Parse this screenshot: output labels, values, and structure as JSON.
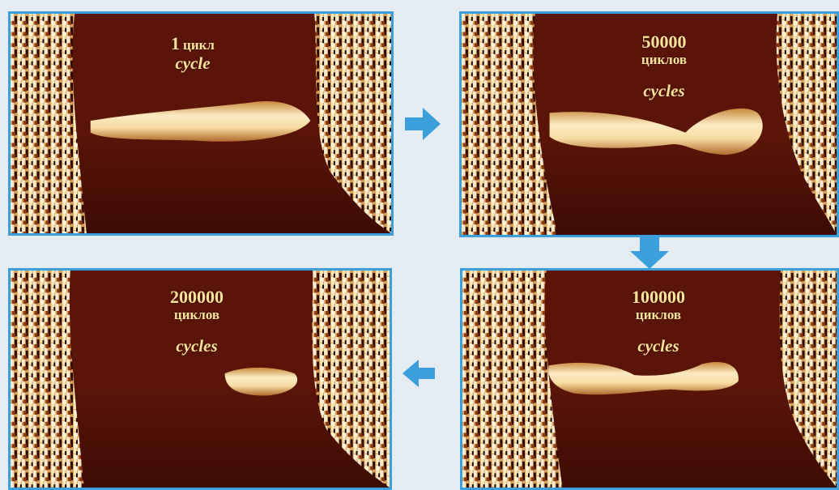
{
  "panels": [
    {
      "id": "p1",
      "number": "1",
      "unit_ru": "цикл",
      "unit_en": "cycle"
    },
    {
      "id": "p2",
      "number": "50000",
      "unit_ru": "циклов",
      "unit_en": "cycles"
    },
    {
      "id": "p3",
      "number": "100000",
      "unit_ru": "циклов",
      "unit_en": "cycles"
    },
    {
      "id": "p4",
      "number": "200000",
      "unit_ru": "циклов",
      "unit_en": "cycles"
    }
  ],
  "colors": {
    "border": "#3aa0dc",
    "arrow": "#3b9fdc",
    "background": "#5a1408",
    "band": "#f3dba0",
    "label": "#f7e39a"
  }
}
